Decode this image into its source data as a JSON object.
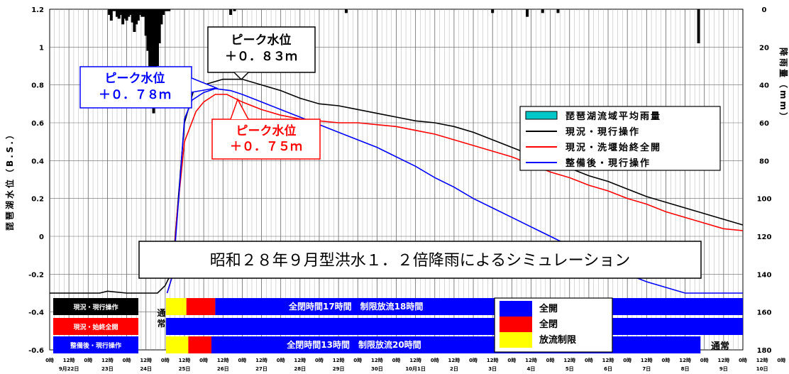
{
  "chart_data": {
    "type": "line",
    "title": "昭和２８年９月型洪水１．２倍降雨によるシミュレーション",
    "ylabel": "琵琶湖水位（B.S.）",
    "y2label": "降雨量（mm）",
    "ylim": [
      -0.6,
      1.2
    ],
    "y2lim": [
      0,
      180
    ],
    "grid": true,
    "y_ticks": [
      "1.2",
      "1",
      "0.8",
      "0.6",
      "0.4",
      "0.2",
      "0",
      "-0.2",
      "-0.4",
      "-0.6"
    ],
    "y2_ticks": [
      "0",
      "20",
      "40",
      "60",
      "80",
      "100",
      "120",
      "140",
      "160",
      "180"
    ],
    "x_hour_labels": [
      "0時",
      "12時",
      "0時",
      "12時",
      "0時",
      "12時",
      "0時",
      "12時",
      "0時",
      "12時",
      "0時",
      "12時",
      "0時",
      "12時",
      "0時",
      "12時",
      "0時",
      "12時",
      "0時",
      "12時",
      "0時",
      "12時",
      "0時",
      "12時",
      "0時",
      "12時",
      "0時",
      "12時",
      "0時",
      "12時",
      "0時",
      "12時",
      "0時",
      "12時",
      "0時",
      "12時",
      "0時",
      "12時",
      "0時",
      "12時",
      "0時"
    ],
    "x_day_labels": [
      "9月22日",
      "23日",
      "24日",
      "25日",
      "26日",
      "27日",
      "28日",
      "29日",
      "30日",
      "10月1日",
      "2日",
      "3日",
      "4日",
      "5日",
      "6日",
      "7日",
      "8日",
      "9日",
      "10日"
    ],
    "legend_position": "right",
    "series": [
      {
        "name": "琵琶湖流域平均雨量",
        "type": "bar",
        "color": "#00c8c8",
        "x": [
          1.55,
          1.6,
          1.65,
          1.7,
          1.75,
          1.8,
          1.85,
          1.9,
          1.95,
          2.0,
          2.05,
          2.1,
          2.15,
          2.2,
          2.25,
          2.3,
          2.35,
          2.4,
          2.45,
          2.5,
          2.55,
          2.6,
          2.65,
          2.7,
          2.75,
          2.8,
          2.85,
          2.9,
          2.95,
          3.0,
          3.05,
          3.1,
          4.7,
          4.8,
          7.7,
          11.5,
          12.4,
          12.8,
          13.2,
          16.85
        ],
        "values": [
          3,
          6,
          1,
          1,
          4,
          5,
          3,
          8,
          5,
          6,
          4,
          3,
          7,
          12,
          8,
          6,
          3,
          4,
          4,
          14,
          22,
          32,
          46,
          55,
          48,
          30,
          18,
          8,
          3,
          1,
          1,
          1,
          3,
          1,
          2,
          2,
          4,
          2,
          2,
          18
        ]
      },
      {
        "name": "現況・現行操作",
        "color": "#000000",
        "x": [
          0,
          0.5,
          1.3,
          1.5,
          2.0,
          2.5,
          2.8,
          3.0,
          3.12,
          3.2,
          3.3,
          3.5,
          3.75,
          4.0,
          4.5,
          5.0,
          5.5,
          6.0,
          6.5,
          7.0,
          7.5,
          8.0,
          8.5,
          9.0,
          9.5,
          10.0,
          10.5,
          11.0,
          11.5,
          12.0,
          12.5,
          13.0,
          13.5,
          14.0,
          14.5,
          15.0,
          15.5,
          16.0,
          16.5,
          17.0,
          17.5,
          18.0
        ],
        "values": [
          -0.3,
          -0.3,
          -0.3,
          -0.29,
          -0.3,
          -0.3,
          -0.3,
          -0.26,
          -0.21,
          -0.15,
          0.1,
          0.6,
          0.78,
          0.8,
          0.83,
          0.83,
          0.8,
          0.77,
          0.73,
          0.7,
          0.69,
          0.67,
          0.65,
          0.63,
          0.61,
          0.6,
          0.58,
          0.55,
          0.51,
          0.47,
          0.43,
          0.4,
          0.36,
          0.32,
          0.29,
          0.25,
          0.21,
          0.18,
          0.15,
          0.12,
          0.09,
          0.06
        ]
      },
      {
        "name": "現況・洗堰始終全開",
        "color": "#ff0000",
        "x": [
          3.05,
          3.2,
          3.3,
          3.5,
          3.8,
          4.0,
          4.3,
          4.6,
          5.0,
          5.5,
          6.0,
          6.5,
          7.0,
          7.5,
          8.0,
          8.5,
          9.0,
          9.5,
          10.0,
          10.5,
          11.0,
          11.5,
          12.0,
          12.5,
          13.0,
          13.5,
          14.0,
          14.5,
          15.0,
          15.5,
          16.0,
          16.5,
          17.0,
          17.5,
          18.0
        ],
        "values": [
          -0.3,
          -0.2,
          0.1,
          0.5,
          0.66,
          0.71,
          0.75,
          0.75,
          0.71,
          0.67,
          0.64,
          0.62,
          0.61,
          0.6,
          0.6,
          0.59,
          0.58,
          0.56,
          0.54,
          0.51,
          0.48,
          0.45,
          0.42,
          0.38,
          0.34,
          0.31,
          0.27,
          0.24,
          0.2,
          0.17,
          0.13,
          0.1,
          0.07,
          0.04,
          0.03
        ]
      },
      {
        "name": "整備後・現行操作",
        "color": "#0000ff",
        "x": [
          3.05,
          3.2,
          3.35,
          3.5,
          3.7,
          4.0,
          4.3,
          4.7,
          5.0,
          5.5,
          6.0,
          6.5,
          7.0,
          7.5,
          8.0,
          8.5,
          9.0,
          9.5,
          10.0,
          10.5,
          11.0,
          11.5,
          12.0,
          12.5,
          13.0,
          13.5,
          14.0,
          14.5,
          15.0,
          15.5,
          16.0,
          16.5,
          17.0,
          17.5,
          18.0
        ],
        "values": [
          -0.3,
          -0.2,
          0.2,
          0.62,
          0.72,
          0.76,
          0.78,
          0.77,
          0.75,
          0.71,
          0.67,
          0.63,
          0.59,
          0.55,
          0.51,
          0.47,
          0.42,
          0.37,
          0.31,
          0.26,
          0.2,
          0.15,
          0.1,
          0.05,
          0.0,
          -0.05,
          -0.1,
          -0.15,
          -0.2,
          -0.24,
          -0.27,
          -0.3,
          -0.3,
          -0.3,
          -0.3
        ]
      }
    ],
    "annotations": {
      "peak_black": {
        "line1": "ピーク水位",
        "line2": "＋０．８３ｍ"
      },
      "peak_blue": {
        "line1": "ピーク水位",
        "line2": "＋０．７８ｍ"
      },
      "peak_red": {
        "line1": "ピーク水位",
        "line2": "＋０．７５ｍ"
      }
    },
    "operation_bars": {
      "rows": [
        {
          "label": "現況・現行操作",
          "label_bg": "#000000",
          "text": "全閉時間17時間　制限放流18時間"
        },
        {
          "label": "現況・始終全開",
          "label_bg": "#ff0000",
          "text": ""
        },
        {
          "label": "整備後・現行操作",
          "label_bg": "#0000ff",
          "text": "全閉時間13時間　制限放流20時間"
        }
      ],
      "normal_left": "通常",
      "normal_right": "通常",
      "bar_legend": [
        {
          "label": "全開",
          "color": "#0000ff"
        },
        {
          "label": "全閉",
          "color": "#ff0000"
        },
        {
          "label": "放流制限",
          "color": "#ffff00"
        }
      ]
    }
  }
}
